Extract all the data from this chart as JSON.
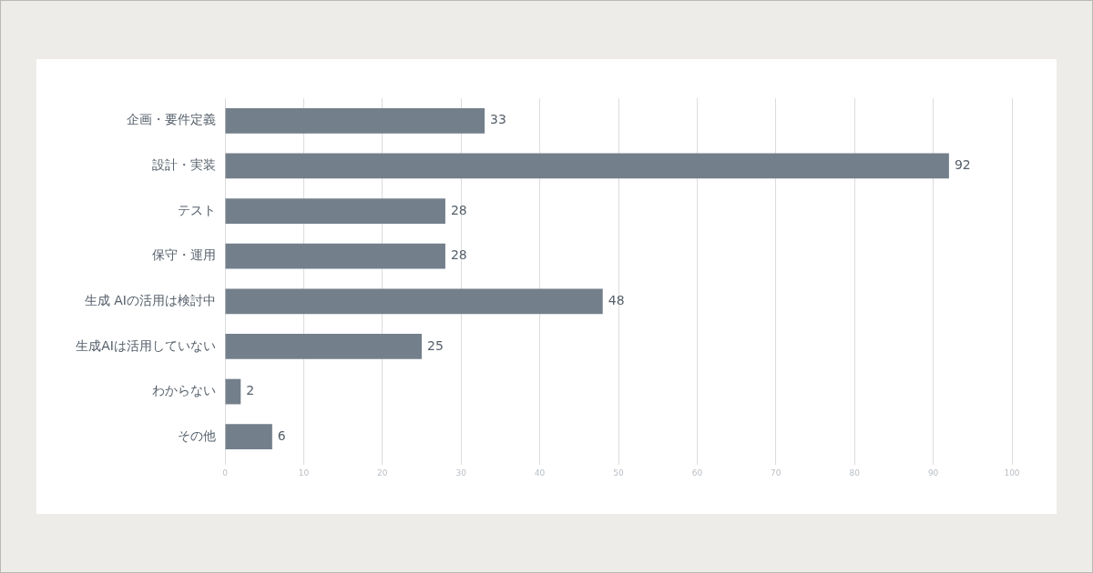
{
  "chart_data": {
    "type": "bar",
    "orientation": "horizontal",
    "categories": [
      "企画・要件定義",
      "設計・実装",
      "テスト",
      "保守・運用",
      "生成 AIの活用は検討中",
      "生成AIは活用していない",
      "わからない",
      "その他"
    ],
    "values": [
      33,
      92,
      28,
      28,
      48,
      25,
      2,
      6
    ],
    "color": "#737f8b",
    "xlim": [
      0,
      100
    ],
    "xticks": [
      0,
      10,
      20,
      30,
      40,
      50,
      60,
      70,
      80,
      90,
      100
    ],
    "grid": "x",
    "data_labels": true
  }
}
